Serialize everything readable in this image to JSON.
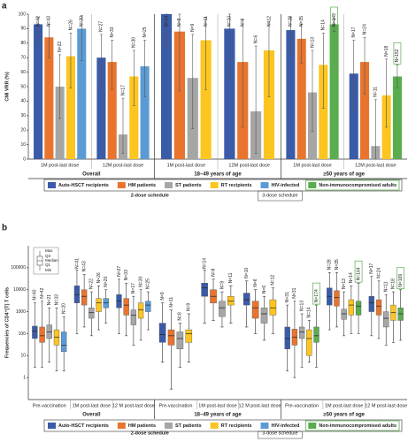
{
  "chart_data": [
    {
      "type": "bar",
      "panel_label": "a",
      "y_label": "CMI VRR (%)",
      "ylim": [
        0,
        100
      ],
      "yticks": [
        0,
        10,
        20,
        30,
        40,
        50,
        60,
        70,
        80,
        90,
        100
      ],
      "groups": [
        {
          "name": "Overall",
          "categories": [
            "1M post-last dose",
            "12M post-last dose"
          ]
        },
        {
          "name": "18–49 years of age",
          "categories": [
            "1M post-last dose",
            "12M post-last dose"
          ]
        },
        {
          "name": "≥50 years of age",
          "categories": [
            "1M post-last dose",
            "12M post-last dose"
          ]
        }
      ],
      "series": [
        {
          "name": "Auto-HSCT recipients",
          "color": "#3a5ba8",
          "values": [
            93,
            70,
            100,
            90,
            89,
            59
          ],
          "ci": [
            [
              80,
              98
            ],
            [
              50,
              86
            ],
            [
              77,
              100
            ],
            [
              55,
              100
            ],
            [
              72,
              98
            ],
            [
              33,
              82
            ]
          ],
          "n_labels": [
            "N=42",
            "N=27",
            "N=14",
            "N=10",
            "N=28",
            "N=17"
          ]
        },
        {
          "name": "HM patients",
          "color": "#e8742e",
          "values": [
            84,
            67,
            88,
            67,
            83,
            67
          ],
          "ci": [
            [
              70,
              93
            ],
            [
              48,
              82
            ],
            [
              47,
              100
            ],
            [
              22,
              96
            ],
            [
              66,
              93
            ],
            [
              45,
              84
            ]
          ],
          "n_labels": [
            "N=43",
            "N=33",
            "N=8",
            "N=6",
            "N=35",
            "N=24"
          ]
        },
        {
          "name": "ST patients",
          "color": "#a6a6a6",
          "values": [
            50,
            17,
            56,
            33,
            46,
            9
          ],
          "ci": [
            [
              28,
              72
            ],
            [
              4,
              42
            ],
            [
              21,
              86
            ],
            [
              4,
              78
            ],
            [
              19,
              75
            ],
            [
              0,
              41
            ]
          ],
          "n_labels": [
            "N=22",
            "N=17",
            "N=9",
            "N=6",
            "N=13",
            "N=11"
          ]
        },
        {
          "name": "RT recipients",
          "color": "#fdc520",
          "values": [
            71,
            57,
            82,
            75,
            65,
            44
          ],
          "ci": [
            [
              49,
              87
            ],
            [
              37,
              75
            ],
            [
              48,
              98
            ],
            [
              43,
              95
            ],
            [
              35,
              87
            ],
            [
              22,
              69
            ]
          ],
          "n_labels": [
            "N=26",
            "N=30",
            "N=11",
            "N=12",
            "N=14",
            "N=18"
          ]
        },
        {
          "name": "HIV-infected",
          "color": "#5b9bd5",
          "values": [
            90,
            64,
            null,
            null,
            null,
            null
          ],
          "ci": [
            [
              68,
              99
            ],
            [
              43,
              82
            ],
            null,
            null,
            null,
            null
          ],
          "n_labels": [
            "N=20",
            "N=25",
            null,
            null,
            null,
            null
          ]
        },
        {
          "name": "Non-immunocompromised adults",
          "color": "#5aad4e",
          "values": [
            null,
            null,
            null,
            null,
            93,
            57
          ],
          "ci": [
            null,
            null,
            null,
            null,
            [
              88,
              97
            ],
            [
              49,
              65
            ]
          ],
          "n_labels": [
            null,
            null,
            null,
            null,
            "N=149",
            "N=152"
          ]
        }
      ],
      "legend_notes": [
        "2-dose schedule",
        "3-dose schedule"
      ]
    },
    {
      "type": "box",
      "panel_label": "b",
      "y_label": "Frequencies of CD4⁺[T] T cells",
      "log_scale": true,
      "ylim": [
        0.1,
        1000000
      ],
      "yticks": [
        1,
        10,
        100,
        1000,
        10000,
        100000
      ],
      "box_legend": [
        "Max",
        "Q3",
        "Median",
        "Q1",
        "Min"
      ],
      "groups": [
        {
          "name": "Overall",
          "categories": [
            "Pre-vaccination",
            "1M post-last dose",
            "12 M post-last dose"
          ]
        },
        {
          "name": "18–49 years of age",
          "categories": [
            "Pre-vaccination",
            "1M post-last dose",
            "12 M post-last dose"
          ]
        },
        {
          "name": "≥50 years of age",
          "categories": [
            "Pre-vaccination",
            "1M post-last dose",
            "12 M post-last dose"
          ]
        }
      ],
      "series": [
        {
          "name": "Auto-HSCT recipients",
          "color": "#3a5ba8",
          "boxes": [
            [
              3,
              60,
              130,
              220,
              2500
            ],
            [
              100,
              2500,
              6000,
              15000,
              80000
            ],
            [
              100,
              1500,
              3000,
              6000,
              30000
            ],
            [
              5,
              40,
              90,
              300,
              2500
            ],
            [
              300,
              5000,
              12000,
              20000,
              80000
            ],
            [
              200,
              2000,
              3500,
              7000,
              25000
            ],
            [
              2,
              20,
              60,
              200,
              2000
            ],
            [
              150,
              2000,
              5000,
              12000,
              60000
            ],
            [
              80,
              1000,
              2500,
              5000,
              40000
            ]
          ],
          "n_labels": [
            "N=40",
            "N=41",
            "N=27",
            "N=9",
            "N=14",
            "N=10",
            "N=31",
            "N=28",
            "N=17"
          ]
        },
        {
          "name": "HM patients",
          "color": "#e8742e",
          "boxes": [
            [
              3,
              40,
              80,
              200,
              3000
            ],
            [
              200,
              2000,
              5000,
              10000,
              50000
            ],
            [
              80,
              700,
              2000,
              4000,
              20000
            ],
            [
              0.3,
              30,
              80,
              150,
              1200
            ],
            [
              400,
              2500,
              5000,
              10000,
              30000
            ],
            [
              100,
              500,
              1500,
              3000,
              10000
            ],
            [
              1,
              30,
              70,
              160,
              3000
            ],
            [
              200,
              1800,
              4500,
              9000,
              60000
            ],
            [
              60,
              700,
              1800,
              3500,
              25000
            ]
          ],
          "n_labels": [
            "N=42",
            "N=43",
            "N=33",
            "N=11",
            "N=8",
            "N=6",
            "N=31",
            "N=35",
            "N=24"
          ]
        },
        {
          "name": "ST patients",
          "color": "#a6a6a6",
          "boxes": [
            [
              5,
              60,
              120,
              250,
              1500
            ],
            [
              80,
              500,
              900,
              1500,
              8000
            ],
            [
              30,
              250,
              700,
              1200,
              5000
            ],
            [
              3,
              20,
              60,
              120,
              300
            ],
            [
              200,
              600,
              1500,
              3000,
              8000
            ],
            [
              50,
              300,
              800,
              1500,
              5000
            ],
            [
              3,
              60,
              120,
              200,
              800
            ],
            [
              80,
              450,
              800,
              1300,
              8000
            ],
            [
              30,
              200,
              500,
              1000,
              6000
            ]
          ],
          "n_labels": [
            "N=21",
            "N=22",
            "N=17",
            "N=8",
            "N=9",
            "N=6",
            "N=13",
            "N=13",
            "N=11"
          ]
        },
        {
          "name": "RT recipients",
          "color": "#fdc520",
          "boxes": [
            [
              2,
              30,
              70,
              150,
              1500
            ],
            [
              150,
              1000,
              2500,
              4000,
              15000
            ],
            [
              50,
              500,
              1200,
              2500,
              10000
            ],
            [
              5,
              40,
              100,
              150,
              800
            ],
            [
              300,
              2000,
              3000,
              5000,
              15000
            ],
            [
              100,
              700,
              1500,
              3500,
              12000
            ],
            [
              5,
              10,
              60,
              150,
              400
            ],
            [
              100,
              700,
              2000,
              3500,
              15000
            ],
            [
              40,
              400,
              900,
              2000,
              8000
            ]
          ],
          "n_labels": [
            "N=33",
            "N=26",
            "N=30",
            "N=9",
            "N=11",
            "N=12",
            "N=14",
            "N=14",
            "N=18"
          ]
        },
        {
          "name": "HIV-infected",
          "color": "#5b9bd5",
          "boxes": [
            [
              2,
              15,
              30,
              120,
              600
            ],
            [
              300,
              1500,
              2500,
              4000,
              10000
            ],
            [
              150,
              1000,
              2000,
              3000,
              8000
            ],
            null,
            null,
            null,
            null,
            null,
            null
          ],
          "n_labels": [
            "N=20",
            "N=20",
            "N=25",
            null,
            null,
            null,
            null,
            null,
            null
          ]
        },
        {
          "name": "Non-immunocompromised adults",
          "color": "#5aad4e",
          "boxes": [
            null,
            null,
            null,
            null,
            null,
            null,
            [
              3,
              40,
              80,
              200,
              2000
            ],
            [
              100,
              700,
              1800,
              3000,
              20000
            ],
            [
              50,
              400,
              800,
              1500,
              10000
            ]
          ],
          "n_labels": [
            null,
            null,
            null,
            null,
            null,
            null,
            "N=174",
            "N=164",
            "N=169"
          ]
        }
      ],
      "legend_notes": [
        "2-dose schedule",
        "3-dose schedule"
      ]
    }
  ]
}
